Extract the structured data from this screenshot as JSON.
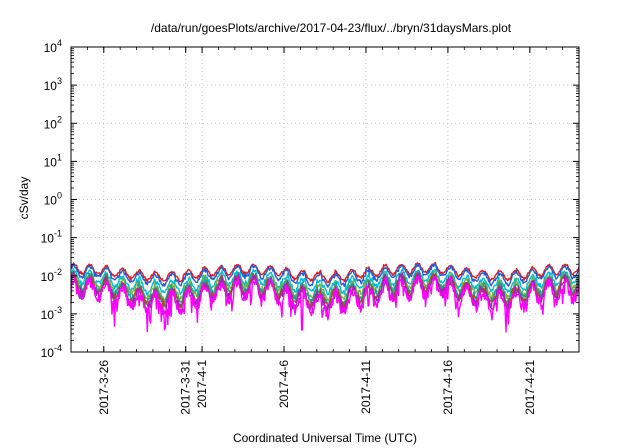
{
  "chart_data": {
    "type": "line",
    "title": "/data/run/goesPlots/archive/2017-04-23/flux/../bryn/31daysMars.plot",
    "xlabel": "Coordinated Universal Time (UTC)",
    "ylabel": "cSv/day",
    "yscale": "log",
    "ylim": [
      0.0001,
      10000
    ],
    "xlim_days_since_start": [
      0,
      31
    ],
    "y_ticks": [
      {
        "base": "10",
        "exp": "-4"
      },
      {
        "base": "10",
        "exp": "-3"
      },
      {
        "base": "10",
        "exp": "-2"
      },
      {
        "base": "10",
        "exp": "-1"
      },
      {
        "base": "10",
        "exp": "0"
      },
      {
        "base": "10",
        "exp": "1"
      },
      {
        "base": "10",
        "exp": "2"
      },
      {
        "base": "10",
        "exp": "3"
      },
      {
        "base": "10",
        "exp": "4"
      }
    ],
    "x_ticks": [
      {
        "label": "2017-3-26",
        "day": 2.0
      },
      {
        "label": "2017-3-31",
        "day": 7.0
      },
      {
        "label": "2017-4-1",
        "day": 8.0
      },
      {
        "label": "2017-4-6",
        "day": 13.0
      },
      {
        "label": "2017-4-11",
        "day": 18.0
      },
      {
        "label": "2017-4-16",
        "day": 23.0
      },
      {
        "label": "2017-4-21",
        "day": 28.0
      }
    ],
    "grid": true,
    "series": [
      {
        "color": "#e31a1c",
        "base": 0.012,
        "values_desc": "approx 0.009–0.02"
      },
      {
        "color": "#1f5fd6",
        "base": 0.01,
        "values_desc": "approx 0.007–0.017"
      },
      {
        "color": "#00bcd4",
        "base": 0.0068,
        "values_desc": "approx 0.005–0.012"
      },
      {
        "color": "#7cb342",
        "base": 0.0052,
        "values_desc": "approx 0.004–0.009"
      },
      {
        "color": "#1aa39a",
        "base": 0.0045,
        "values_desc": "approx 0.003–0.008"
      },
      {
        "color": "#a0522d",
        "base": 0.0038,
        "values_desc": "approx 0.0025–0.007"
      },
      {
        "color": "#9c27b0",
        "base": 0.0033,
        "values_desc": "approx 0.002–0.006"
      },
      {
        "color": "#ff00ff",
        "base": 0.0028,
        "values_desc": "approx 0.0004–0.006"
      }
    ]
  }
}
